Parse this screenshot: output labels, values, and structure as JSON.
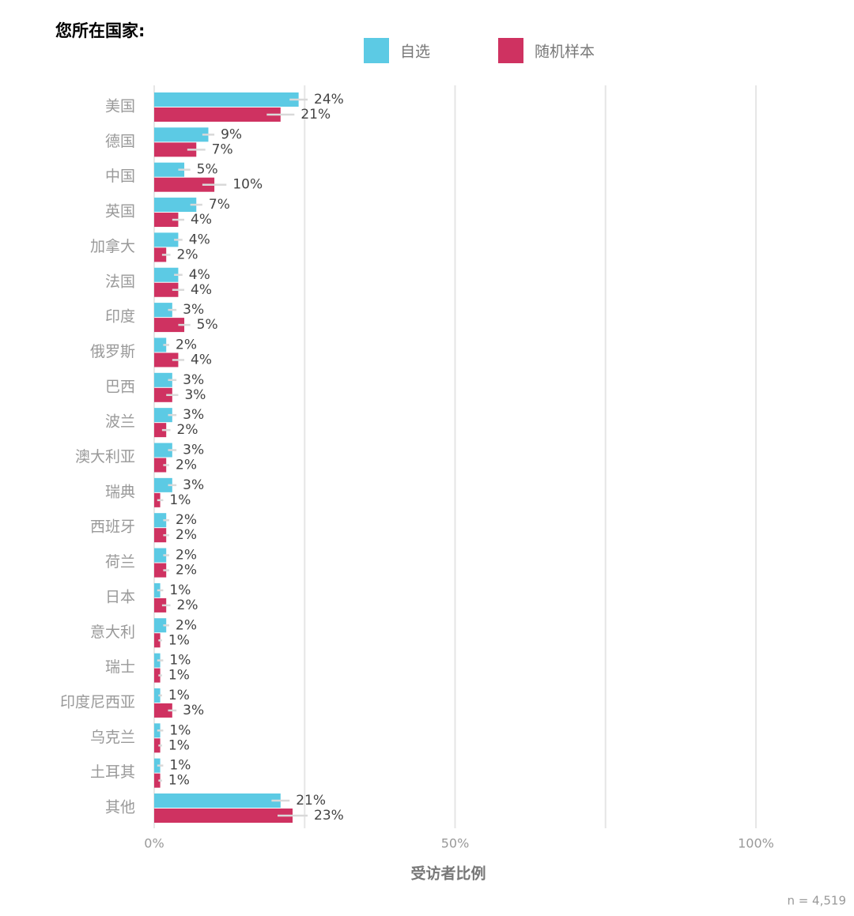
{
  "chart_data": {
    "type": "grouped_hbar",
    "title": "您所在国家:",
    "x_label": "受访者比例",
    "note": "n =  4,519",
    "categories": [
      "美国",
      "德国",
      "中国",
      "英国",
      "加拿大",
      "法国",
      "印度",
      "俄罗斯",
      "巴西",
      "波兰",
      "澳大利亚",
      "瑞典",
      "西班牙",
      "荷兰",
      "日本",
      "意大利",
      "瑞士",
      "印度尼西亚",
      "乌克兰",
      "土耳其",
      "其他"
    ],
    "series": [
      {
        "name": "自选",
        "color": "#5ccae4",
        "values": [
          24,
          9,
          5,
          7,
          4,
          4,
          3,
          2,
          3,
          3,
          3,
          3,
          2,
          2,
          1,
          2,
          1,
          1,
          1,
          1,
          21
        ],
        "value_labels": [
          "24%",
          "9%",
          "5%",
          "7%",
          "4%",
          "4%",
          "3%",
          "2%",
          "3%",
          "3%",
          "3%",
          "3%",
          "2%",
          "2%",
          "1%",
          "2%",
          "1%",
          "1%",
          "1%",
          "1%",
          "21%"
        ],
        "errors": [
          1.5,
          1,
          1,
          1,
          0.7,
          0.7,
          0.7,
          0.5,
          0.7,
          0.7,
          0.7,
          0.7,
          0.5,
          0.5,
          0.5,
          0.5,
          0.5,
          0.3,
          0.5,
          0.5,
          1.5
        ]
      },
      {
        "name": "随机样本",
        "color": "#cf3261",
        "values": [
          21,
          7,
          10,
          4,
          2,
          4,
          5,
          4,
          3,
          2,
          2,
          1,
          2,
          2,
          2,
          1,
          1,
          3,
          1,
          1,
          23
        ],
        "value_labels": [
          "21%",
          "7%",
          "10%",
          "4%",
          "2%",
          "4%",
          "5%",
          "4%",
          "3%",
          "2%",
          "2%",
          "1%",
          "2%",
          "2%",
          "2%",
          "1%",
          "1%",
          "3%",
          "1%",
          "1%",
          "23%"
        ],
        "errors": [
          2.3,
          1.5,
          2,
          1,
          0.7,
          1,
          1,
          1,
          1,
          0.7,
          0.5,
          0.5,
          0.5,
          0.5,
          0.7,
          0.3,
          0.3,
          0.7,
          0.3,
          0.3,
          2.5
        ]
      }
    ],
    "xlim": [
      0,
      100
    ],
    "xticks": [
      {
        "value": 0,
        "label": "0%"
      },
      {
        "value": 25,
        "label": null
      },
      {
        "value": 50,
        "label": "50%"
      },
      {
        "value": 75,
        "label": null
      },
      {
        "value": 100,
        "label": "100%"
      }
    ],
    "grid": true
  }
}
